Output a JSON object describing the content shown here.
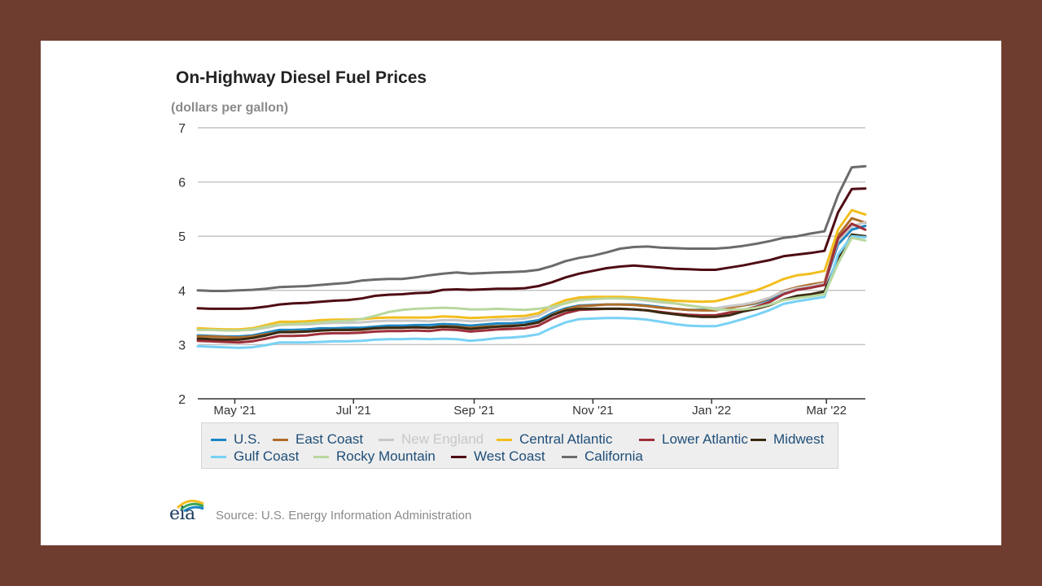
{
  "chart_data": {
    "type": "line",
    "title": "On-Highway Diesel Fuel Prices",
    "subtitle": "(dollars per gallon)",
    "ylim": [
      2,
      7
    ],
    "yticks": [
      2,
      3,
      4,
      5,
      6,
      7
    ],
    "xlim": [
      "2021-04-12",
      "2022-03-21"
    ],
    "xticks": [
      {
        "date": "2021-05-01",
        "label": "May '21"
      },
      {
        "date": "2021-07-01",
        "label": "Jul '21"
      },
      {
        "date": "2021-09-01",
        "label": "Sep '21"
      },
      {
        "date": "2021-11-01",
        "label": "Nov '21"
      },
      {
        "date": "2022-01-01",
        "label": "Jan '22"
      },
      {
        "date": "2022-03-01",
        "label": "Mar '22"
      }
    ],
    "grid": true,
    "legend_position": "bottom",
    "x": [
      "2021-04-12",
      "2021-04-19",
      "2021-04-26",
      "2021-05-03",
      "2021-05-10",
      "2021-05-17",
      "2021-05-24",
      "2021-05-31",
      "2021-06-07",
      "2021-06-14",
      "2021-06-21",
      "2021-06-28",
      "2021-07-05",
      "2021-07-12",
      "2021-07-19",
      "2021-07-26",
      "2021-08-02",
      "2021-08-09",
      "2021-08-16",
      "2021-08-23",
      "2021-08-30",
      "2021-09-06",
      "2021-09-13",
      "2021-09-20",
      "2021-09-27",
      "2021-10-04",
      "2021-10-11",
      "2021-10-18",
      "2021-10-25",
      "2021-11-01",
      "2021-11-08",
      "2021-11-15",
      "2021-11-22",
      "2021-11-29",
      "2021-12-06",
      "2021-12-13",
      "2021-12-20",
      "2021-12-27",
      "2022-01-03",
      "2022-01-10",
      "2022-01-17",
      "2022-01-24",
      "2022-01-31",
      "2022-02-07",
      "2022-02-14",
      "2022-02-21",
      "2022-02-28",
      "2022-03-07",
      "2022-03-14",
      "2022-03-21"
    ],
    "series": [
      {
        "name": "U.S.",
        "color": "#1b86c4",
        "values": [
          3.17,
          3.16,
          3.15,
          3.15,
          3.17,
          3.22,
          3.27,
          3.27,
          3.28,
          3.3,
          3.3,
          3.31,
          3.31,
          3.33,
          3.35,
          3.35,
          3.36,
          3.36,
          3.38,
          3.37,
          3.35,
          3.37,
          3.39,
          3.39,
          3.41,
          3.45,
          3.58,
          3.67,
          3.72,
          3.73,
          3.74,
          3.74,
          3.74,
          3.72,
          3.69,
          3.66,
          3.64,
          3.64,
          3.64,
          3.69,
          3.72,
          3.76,
          3.84,
          3.96,
          4.03,
          4.07,
          4.12,
          4.85,
          5.12,
          5.19
        ]
      },
      {
        "name": "East Coast",
        "color": "#b06d2a",
        "values": [
          3.15,
          3.15,
          3.14,
          3.13,
          3.15,
          3.19,
          3.23,
          3.24,
          3.24,
          3.26,
          3.27,
          3.27,
          3.27,
          3.3,
          3.31,
          3.31,
          3.32,
          3.31,
          3.34,
          3.33,
          3.31,
          3.33,
          3.34,
          3.35,
          3.36,
          3.41,
          3.55,
          3.65,
          3.71,
          3.72,
          3.74,
          3.74,
          3.73,
          3.71,
          3.68,
          3.66,
          3.64,
          3.63,
          3.63,
          3.68,
          3.72,
          3.77,
          3.86,
          3.99,
          4.06,
          4.11,
          4.15,
          5.01,
          5.33,
          5.25
        ]
      },
      {
        "name": "New England",
        "color": "#c8c8c8",
        "values": [
          3.28,
          3.28,
          3.27,
          3.27,
          3.27,
          3.31,
          3.36,
          3.37,
          3.37,
          3.39,
          3.4,
          3.4,
          3.41,
          3.43,
          3.44,
          3.44,
          3.44,
          3.43,
          3.45,
          3.45,
          3.43,
          3.44,
          3.46,
          3.46,
          3.48,
          3.53,
          3.66,
          3.77,
          3.83,
          3.84,
          3.86,
          3.86,
          3.84,
          3.81,
          3.78,
          3.76,
          3.72,
          3.69,
          3.67,
          3.71,
          3.74,
          3.79,
          3.87,
          3.98,
          4.04,
          4.08,
          4.13,
          4.91,
          5.18,
          5.26
        ]
      },
      {
        "name": "Central Atlantic",
        "color": "#f2be1e",
        "values": [
          3.3,
          3.29,
          3.28,
          3.28,
          3.3,
          3.36,
          3.42,
          3.42,
          3.43,
          3.45,
          3.46,
          3.46,
          3.47,
          3.49,
          3.5,
          3.5,
          3.5,
          3.5,
          3.52,
          3.51,
          3.49,
          3.5,
          3.51,
          3.52,
          3.53,
          3.58,
          3.72,
          3.82,
          3.87,
          3.88,
          3.88,
          3.88,
          3.87,
          3.85,
          3.83,
          3.81,
          3.8,
          3.79,
          3.8,
          3.86,
          3.93,
          4.0,
          4.1,
          4.21,
          4.28,
          4.31,
          4.36,
          5.12,
          5.48,
          5.4
        ]
      },
      {
        "name": "Lower Atlantic",
        "color": "#9e2f3a",
        "values": [
          3.07,
          3.06,
          3.05,
          3.04,
          3.06,
          3.11,
          3.16,
          3.16,
          3.17,
          3.2,
          3.21,
          3.21,
          3.22,
          3.24,
          3.25,
          3.25,
          3.26,
          3.25,
          3.28,
          3.27,
          3.24,
          3.26,
          3.28,
          3.29,
          3.3,
          3.35,
          3.48,
          3.58,
          3.64,
          3.65,
          3.66,
          3.66,
          3.65,
          3.63,
          3.6,
          3.57,
          3.55,
          3.54,
          3.54,
          3.59,
          3.64,
          3.7,
          3.79,
          3.93,
          4.01,
          4.05,
          4.1,
          4.96,
          5.23,
          5.12
        ]
      },
      {
        "name": "Midwest",
        "color": "#3a2a12",
        "values": [
          3.11,
          3.1,
          3.09,
          3.09,
          3.12,
          3.17,
          3.23,
          3.23,
          3.24,
          3.26,
          3.27,
          3.27,
          3.28,
          3.3,
          3.31,
          3.31,
          3.32,
          3.31,
          3.33,
          3.32,
          3.29,
          3.31,
          3.33,
          3.34,
          3.36,
          3.41,
          3.54,
          3.63,
          3.66,
          3.66,
          3.66,
          3.66,
          3.65,
          3.63,
          3.59,
          3.56,
          3.53,
          3.51,
          3.51,
          3.54,
          3.61,
          3.66,
          3.73,
          3.83,
          3.9,
          3.93,
          3.98,
          4.6,
          5.03,
          5.0
        ]
      },
      {
        "name": "Gulf Coast",
        "color": "#78d1f5",
        "values": [
          2.97,
          2.96,
          2.95,
          2.94,
          2.95,
          2.99,
          3.04,
          3.04,
          3.04,
          3.05,
          3.06,
          3.06,
          3.07,
          3.09,
          3.1,
          3.1,
          3.11,
          3.1,
          3.11,
          3.1,
          3.07,
          3.09,
          3.12,
          3.13,
          3.15,
          3.19,
          3.31,
          3.41,
          3.47,
          3.48,
          3.49,
          3.49,
          3.48,
          3.46,
          3.42,
          3.38,
          3.35,
          3.34,
          3.34,
          3.4,
          3.47,
          3.55,
          3.64,
          3.75,
          3.8,
          3.84,
          3.88,
          4.66,
          5.0,
          4.98
        ]
      },
      {
        "name": "Rocky Mountain",
        "color": "#b9d79e",
        "values": [
          3.27,
          3.27,
          3.26,
          3.26,
          3.28,
          3.33,
          3.37,
          3.38,
          3.39,
          3.41,
          3.43,
          3.44,
          3.47,
          3.53,
          3.6,
          3.64,
          3.66,
          3.67,
          3.68,
          3.67,
          3.65,
          3.65,
          3.66,
          3.65,
          3.64,
          3.66,
          3.7,
          3.76,
          3.82,
          3.84,
          3.85,
          3.85,
          3.84,
          3.82,
          3.79,
          3.76,
          3.72,
          3.69,
          3.65,
          3.64,
          3.65,
          3.68,
          3.74,
          3.82,
          3.86,
          3.89,
          3.93,
          4.5,
          4.97,
          4.92
        ]
      },
      {
        "name": "West Coast",
        "color": "#4e0b13",
        "values": [
          3.67,
          3.66,
          3.66,
          3.66,
          3.67,
          3.7,
          3.74,
          3.76,
          3.77,
          3.79,
          3.81,
          3.82,
          3.85,
          3.9,
          3.92,
          3.93,
          3.95,
          3.96,
          4.01,
          4.02,
          4.01,
          4.02,
          4.03,
          4.03,
          4.04,
          4.08,
          4.15,
          4.24,
          4.31,
          4.36,
          4.41,
          4.44,
          4.46,
          4.44,
          4.42,
          4.4,
          4.39,
          4.38,
          4.38,
          4.42,
          4.46,
          4.51,
          4.56,
          4.63,
          4.66,
          4.69,
          4.73,
          5.44,
          5.87,
          5.88
        ]
      },
      {
        "name": "California",
        "color": "#6b6b6b",
        "values": [
          4.0,
          3.99,
          3.99,
          4.0,
          4.01,
          4.03,
          4.06,
          4.07,
          4.08,
          4.1,
          4.12,
          4.14,
          4.18,
          4.2,
          4.21,
          4.21,
          4.24,
          4.28,
          4.31,
          4.33,
          4.31,
          4.32,
          4.33,
          4.34,
          4.35,
          4.38,
          4.45,
          4.54,
          4.6,
          4.64,
          4.7,
          4.77,
          4.8,
          4.81,
          4.79,
          4.78,
          4.77,
          4.77,
          4.77,
          4.79,
          4.82,
          4.86,
          4.91,
          4.97,
          5.0,
          5.05,
          5.09,
          5.76,
          6.27,
          6.29
        ]
      }
    ],
    "source": "Source: U.S. Energy Information Administration",
    "logo_text": "eia"
  }
}
